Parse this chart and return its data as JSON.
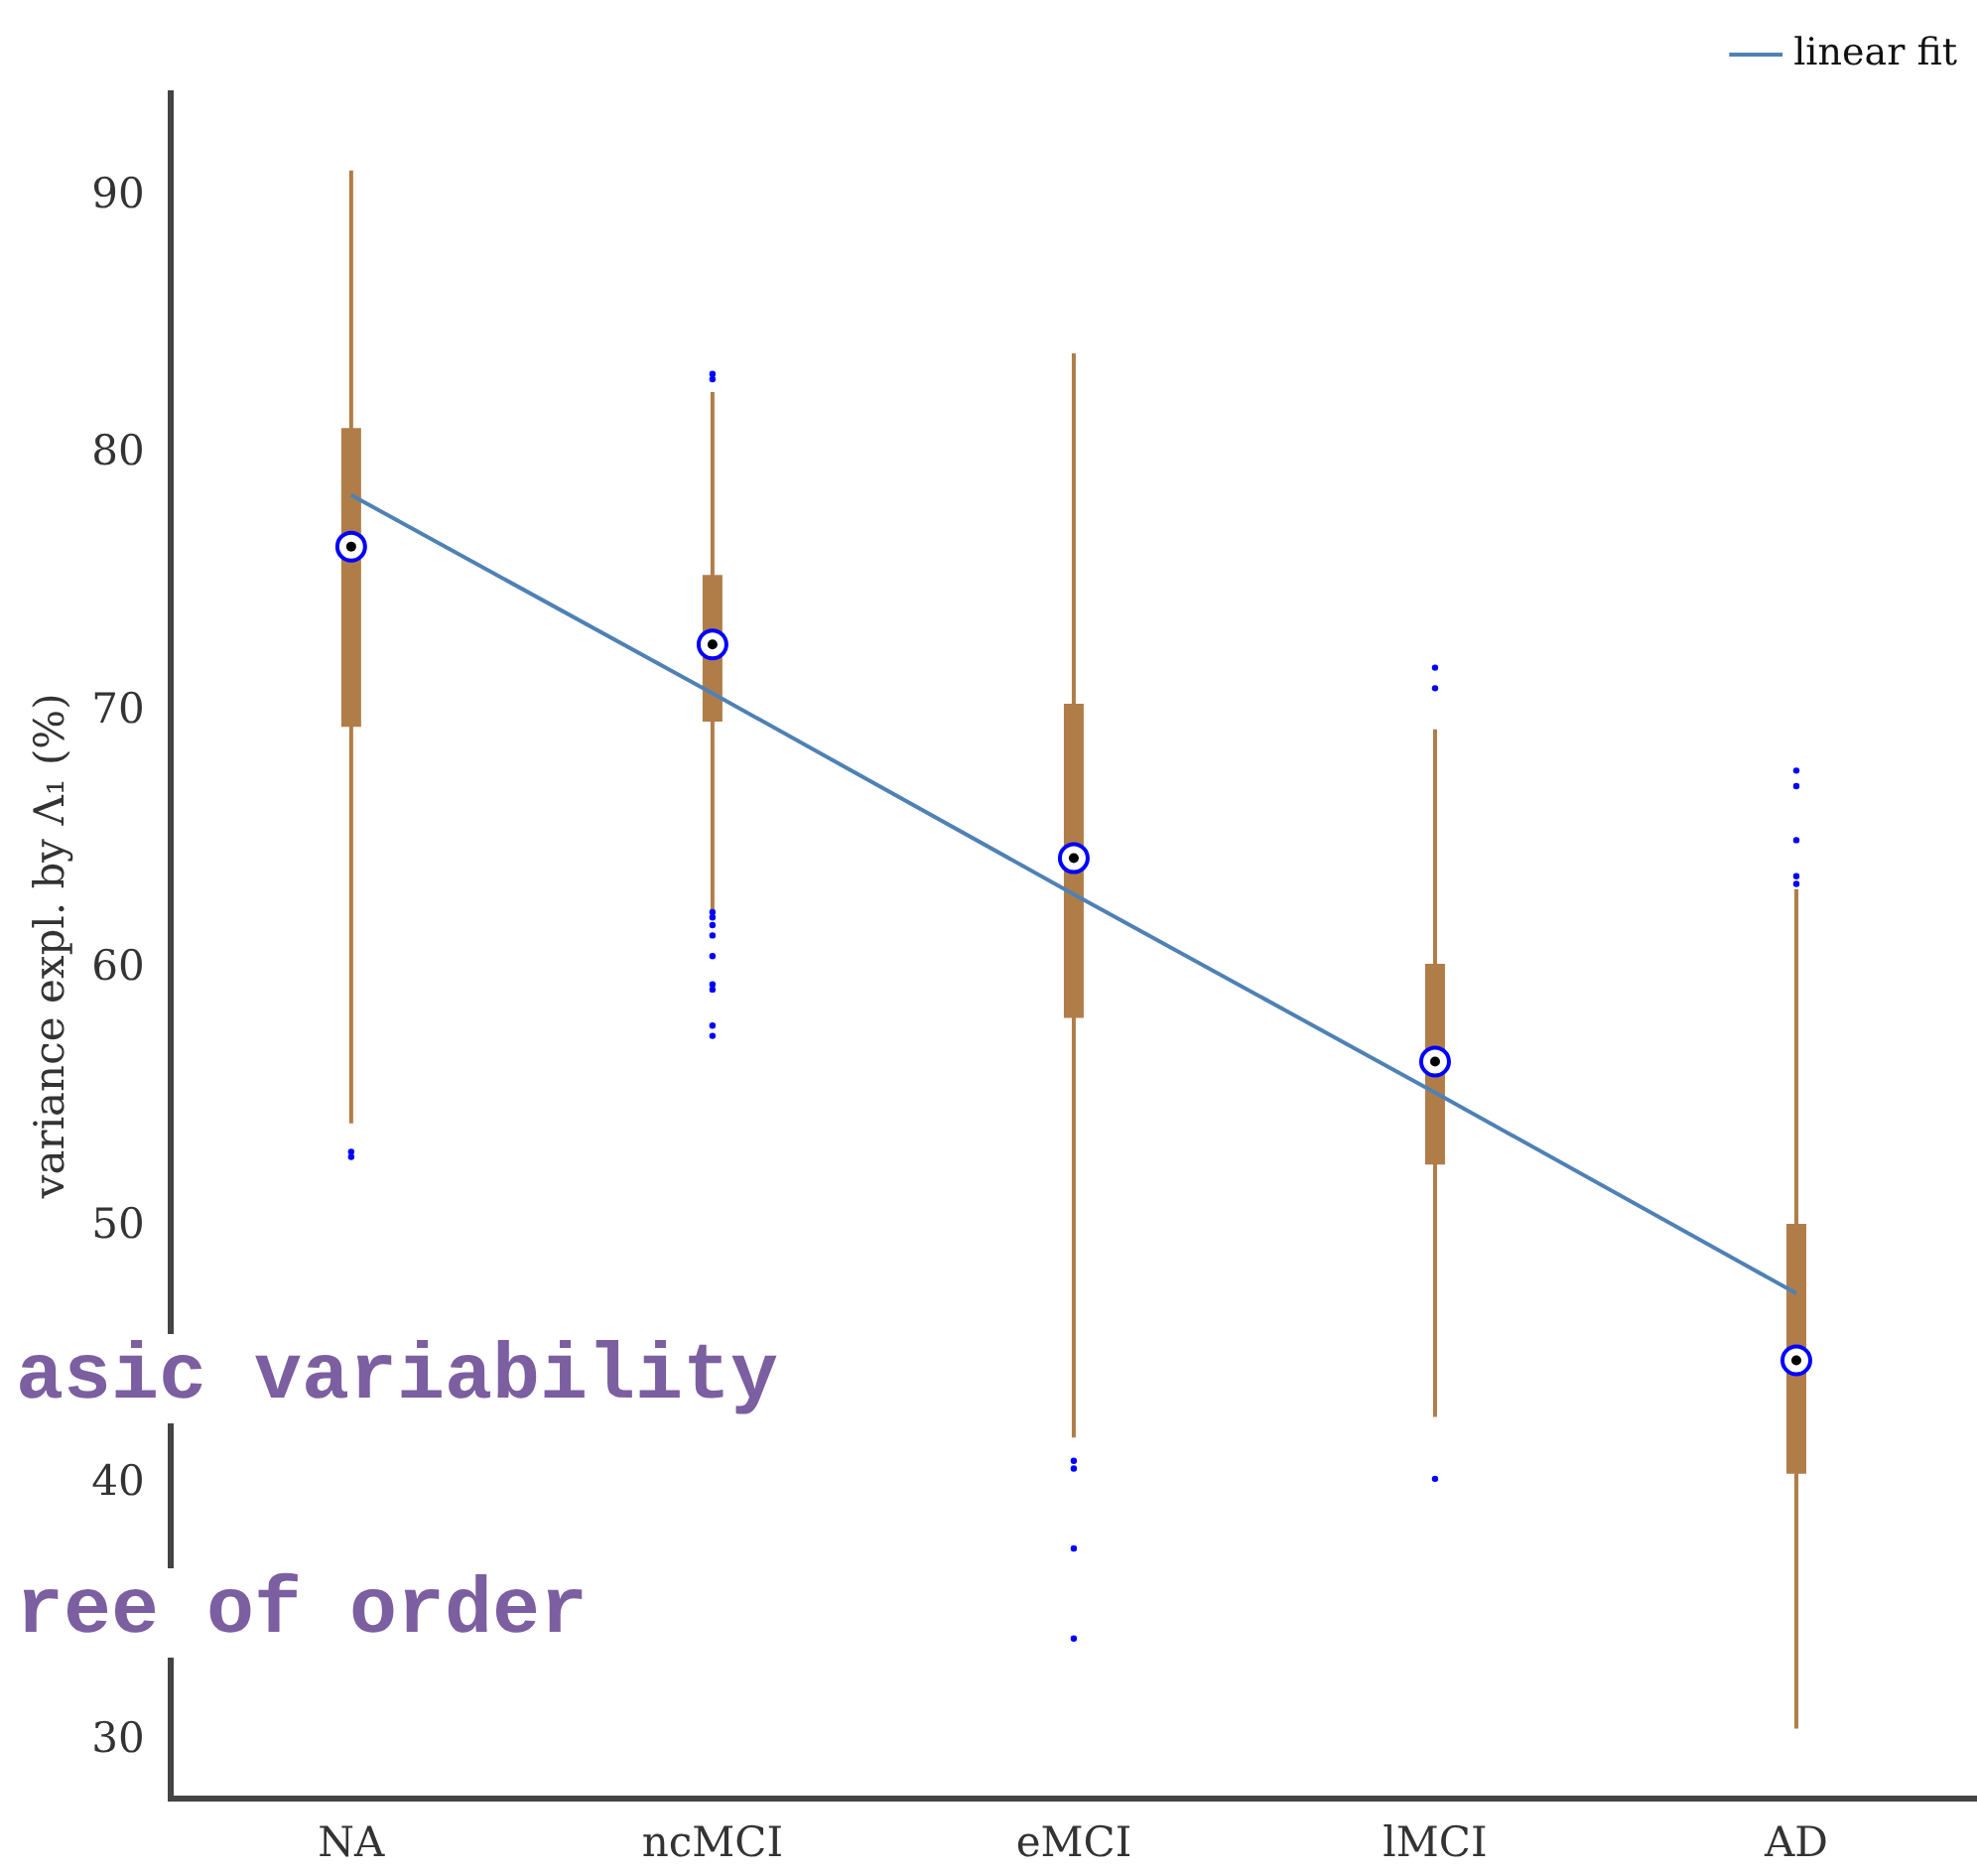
{
  "chart_data": {
    "type": "box",
    "ylabel": "variance expl. by Λ₁ (%)",
    "categories": [
      "NA",
      "ncMCI",
      "eMCI",
      "lMCI",
      "AD"
    ],
    "ylim": [
      27.8,
      94
    ],
    "yticks": [
      30,
      40,
      50,
      60,
      70,
      80,
      90
    ],
    "grid": false,
    "legend": "top right",
    "annotations": [
      "asic variability",
      "ree of order"
    ],
    "series": [
      {
        "type": "box",
        "color": "#b07d48",
        "boxes": [
          {
            "low": 54.0,
            "q1": 69.4,
            "median": 76.4,
            "q3": 81.0,
            "high": 91.0,
            "outliers": [
              52.9,
              52.7
            ]
          },
          {
            "low": 62.3,
            "q1": 69.6,
            "median": 72.6,
            "q3": 75.3,
            "high": 82.4,
            "outliers": [
              83.1,
              82.9,
              62.2,
              62.0,
              61.7,
              61.3,
              60.5,
              59.4,
              59.2,
              57.8,
              57.4
            ]
          },
          {
            "low": 41.8,
            "q1": 58.1,
            "median": 64.3,
            "q3": 70.3,
            "high": 83.9,
            "outliers": [
              40.9,
              40.6,
              37.5,
              34.0
            ]
          },
          {
            "low": 42.6,
            "q1": 52.4,
            "median": 56.4,
            "q3": 60.2,
            "high": 69.3,
            "outliers": [
              71.7,
              70.9,
              40.2
            ]
          },
          {
            "low": 30.5,
            "q1": 40.4,
            "median": 44.8,
            "q3": 50.1,
            "high": 63.1,
            "outliers": [
              67.7,
              67.1,
              65.0,
              63.6,
              63.3
            ]
          }
        ]
      },
      {
        "type": "line",
        "name": "linear fit",
        "color": "#4f81b4",
        "x": [
          "NA",
          "ncMCI",
          "eMCI",
          "lMCI",
          "AD"
        ],
        "values": [
          78.4,
          70.7,
          62.9,
          55.2,
          47.4
        ]
      }
    ]
  }
}
